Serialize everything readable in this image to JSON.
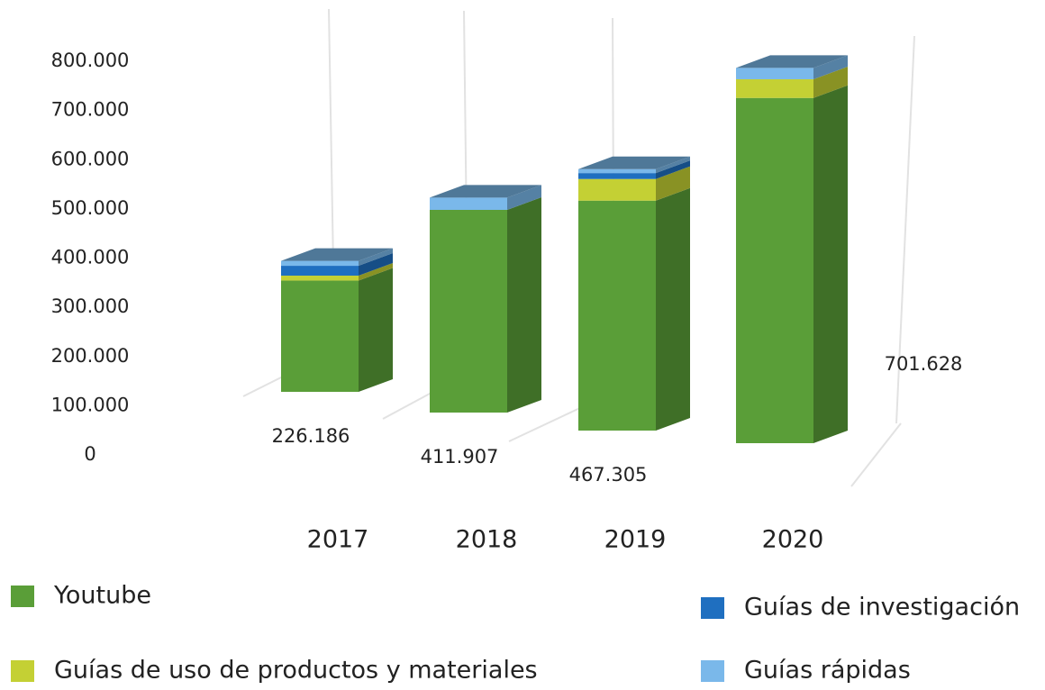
{
  "chart_data": {
    "type": "bar3d_stacked",
    "categories": [
      "2017",
      "2018",
      "2019",
      "2020"
    ],
    "series": [
      {
        "name": "Youtube",
        "color": "#5a9e38",
        "values": [
          226186,
          411907,
          467305,
          701628
        ],
        "value_labels": [
          "226.186",
          "411.907",
          "467.305",
          "701.628"
        ]
      },
      {
        "name": "Guías de uso de productos y materiales",
        "color": "#c4d034",
        "values": [
          10000,
          0,
          44000,
          38000
        ]
      },
      {
        "name": "Guías de investigación",
        "color": "#1f6fc0",
        "values": [
          20000,
          0,
          12000,
          0
        ]
      },
      {
        "name": "Guías rápidas",
        "color": "#7ab8ea",
        "values": [
          10000,
          25000,
          8000,
          23000
        ]
      }
    ],
    "ylim": [
      0,
      800000
    ],
    "yticks": [
      0,
      {
        "value": 100000,
        "label": "100.000"
      },
      {
        "value": 200000,
        "label": "200.000"
      },
      {
        "value": 300000,
        "label": "300.000"
      },
      {
        "value": 400000,
        "label": "400.000"
      },
      {
        "value": 500000,
        "label": "500.000"
      },
      {
        "value": 600000,
        "label": "600.000"
      },
      {
        "value": 700000,
        "label": "700.000"
      },
      {
        "value": 800000,
        "label": "800.000"
      }
    ],
    "legend": "bottom"
  }
}
